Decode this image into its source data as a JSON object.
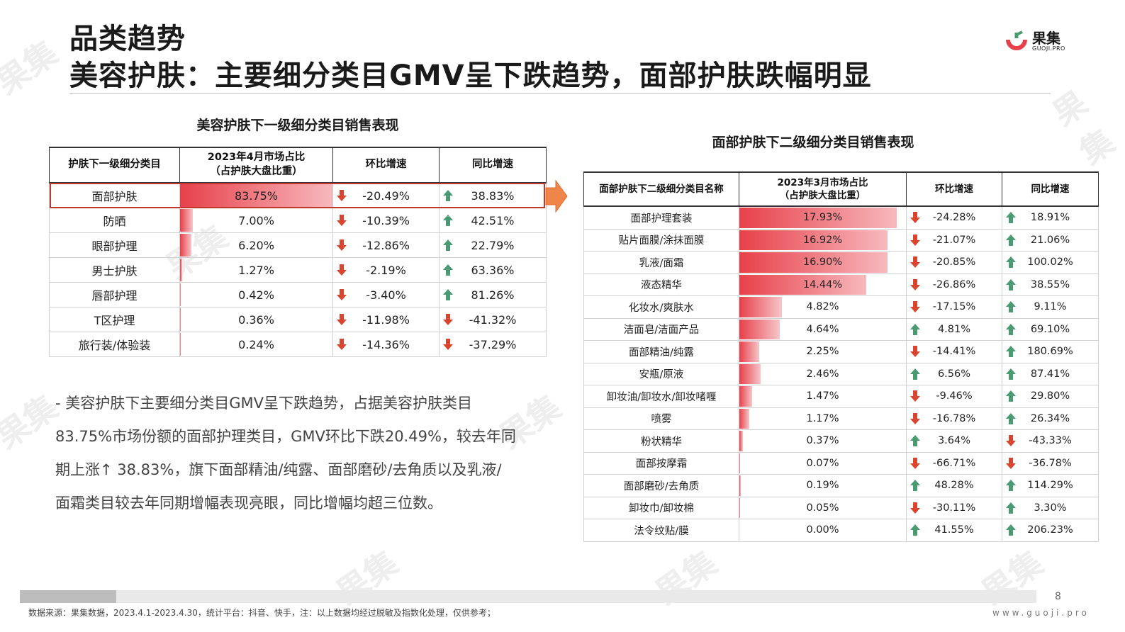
{
  "header": {
    "category": "品类趋势",
    "headline": "美容护肤：主要细分类目GMV呈下跌趋势，面部护肤跌幅明显",
    "logo_text": "果集",
    "logo_sub": "GUOJI.PRO"
  },
  "colors": {
    "bar_red": "#e8404a",
    "arrow_down": "#d9452e",
    "arrow_up": "#4a9a72",
    "highlight_border": "#c0392b"
  },
  "table1": {
    "title": "美容护肤下一级细分类目销售表现",
    "headers": [
      "护肤下一级细分类目",
      "2023年4月市场占比",
      "（占护肤大盘比重）",
      "环比增速",
      "同比增速"
    ],
    "rows": [
      {
        "name": "面部护肤",
        "share": "83.75%",
        "share_value": 83.75,
        "mom": "-20.49%",
        "mom_dir": "down",
        "yoy": "38.83%",
        "yoy_dir": "up"
      },
      {
        "name": "防晒",
        "share": "7.00%",
        "share_value": 7.0,
        "mom": "-10.39%",
        "mom_dir": "down",
        "yoy": "42.51%",
        "yoy_dir": "up"
      },
      {
        "name": "眼部护理",
        "share": "6.20%",
        "share_value": 6.2,
        "mom": "-12.86%",
        "mom_dir": "down",
        "yoy": "22.79%",
        "yoy_dir": "up"
      },
      {
        "name": "男士护肤",
        "share": "1.27%",
        "share_value": 1.27,
        "mom": "-2.19%",
        "mom_dir": "down",
        "yoy": "63.36%",
        "yoy_dir": "up"
      },
      {
        "name": "唇部护理",
        "share": "0.42%",
        "share_value": 0.42,
        "mom": "-3.40%",
        "mom_dir": "down",
        "yoy": "81.26%",
        "yoy_dir": "up"
      },
      {
        "name": "T区护理",
        "share": "0.36%",
        "share_value": 0.36,
        "mom": "-11.98%",
        "mom_dir": "down",
        "yoy": "-41.32%",
        "yoy_dir": "down"
      },
      {
        "name": "旅行装/体验装",
        "share": "0.24%",
        "share_value": 0.24,
        "mom": "-14.36%",
        "mom_dir": "down",
        "yoy": "-37.29%",
        "yoy_dir": "down"
      }
    ]
  },
  "table2": {
    "title": "面部护肤下二级细分类目销售表现",
    "headers": [
      "面部护肤下二级细分类目名称",
      "2023年3月市场占比",
      "（占护肤大盘比重）",
      "环比增速",
      "同比增速"
    ],
    "rows": [
      {
        "name": "面部护理套装",
        "share": "17.93%",
        "share_value": 17.93,
        "mom": "-24.28%",
        "mom_dir": "down",
        "yoy": "18.91%",
        "yoy_dir": "up"
      },
      {
        "name": "贴片面膜/涂抹面膜",
        "share": "16.92%",
        "share_value": 16.92,
        "mom": "-21.07%",
        "mom_dir": "down",
        "yoy": "21.06%",
        "yoy_dir": "up"
      },
      {
        "name": "乳液/面霜",
        "share": "16.90%",
        "share_value": 16.9,
        "mom": "-20.85%",
        "mom_dir": "down",
        "yoy": "100.02%",
        "yoy_dir": "up"
      },
      {
        "name": "液态精华",
        "share": "14.44%",
        "share_value": 14.44,
        "mom": "-26.86%",
        "mom_dir": "down",
        "yoy": "38.55%",
        "yoy_dir": "up"
      },
      {
        "name": "化妆水/爽肤水",
        "share": "4.82%",
        "share_value": 4.82,
        "mom": "-17.15%",
        "mom_dir": "down",
        "yoy": "9.11%",
        "yoy_dir": "up"
      },
      {
        "name": "洁面皂/洁面产品",
        "share": "4.64%",
        "share_value": 4.64,
        "mom": "4.81%",
        "mom_dir": "up",
        "yoy": "69.10%",
        "yoy_dir": "up"
      },
      {
        "name": "面部精油/纯露",
        "share": "2.25%",
        "share_value": 2.25,
        "mom": "-14.41%",
        "mom_dir": "down",
        "yoy": "180.69%",
        "yoy_dir": "up"
      },
      {
        "name": "安瓶/原液",
        "share": "2.46%",
        "share_value": 2.46,
        "mom": "6.56%",
        "mom_dir": "up",
        "yoy": "87.41%",
        "yoy_dir": "up"
      },
      {
        "name": "卸妆油/卸妆水/卸妆啫喱",
        "share": "1.47%",
        "share_value": 1.47,
        "mom": "-9.46%",
        "mom_dir": "down",
        "yoy": "29.80%",
        "yoy_dir": "up"
      },
      {
        "name": "喷雾",
        "share": "1.17%",
        "share_value": 1.17,
        "mom": "-16.78%",
        "mom_dir": "down",
        "yoy": "26.34%",
        "yoy_dir": "up"
      },
      {
        "name": "粉状精华",
        "share": "0.37%",
        "share_value": 0.37,
        "mom": "3.64%",
        "mom_dir": "up",
        "yoy": "-43.33%",
        "yoy_dir": "down"
      },
      {
        "name": "面部按摩霜",
        "share": "0.07%",
        "share_value": 0.07,
        "mom": "-66.71%",
        "mom_dir": "down",
        "yoy": "-36.78%",
        "yoy_dir": "down"
      },
      {
        "name": "面部磨砂/去角质",
        "share": "0.19%",
        "share_value": 0.19,
        "mom": "48.28%",
        "mom_dir": "up",
        "yoy": "114.29%",
        "yoy_dir": "up"
      },
      {
        "name": "卸妆巾/卸妆棉",
        "share": "0.05%",
        "share_value": 0.05,
        "mom": "-30.11%",
        "mom_dir": "down",
        "yoy": "3.30%",
        "yoy_dir": "up"
      },
      {
        "name": "法令纹贴/膜",
        "share": "0.00%",
        "share_value": 0.0,
        "mom": "41.55%",
        "mom_dir": "up",
        "yoy": "206.23%",
        "yoy_dir": "up"
      }
    ]
  },
  "note": {
    "line1": "- 美容护肤下主要细分类目GMV呈下跌趋势，占据美容护肤类目",
    "line2": "83.75%市场份额的面部护理类目，GMV环比下跌20.49%，较去年同",
    "line3": "期上涨↑ 38.83%，旗下面部精油/纯露、面部磨砂/去角质以及乳液/",
    "line4": "面霜类目较去年同期增幅表现亮眼，同比增幅均超三位数。"
  },
  "footer": {
    "page_number": "8",
    "source": "数据来源：果集数据，2023.4.1-2023.4.30，统计平台：抖音、快手，注：以上数据均经过脱敏及指数化处理，仅供参考；",
    "url": "www.guoji.pro"
  },
  "watermark": "果集"
}
